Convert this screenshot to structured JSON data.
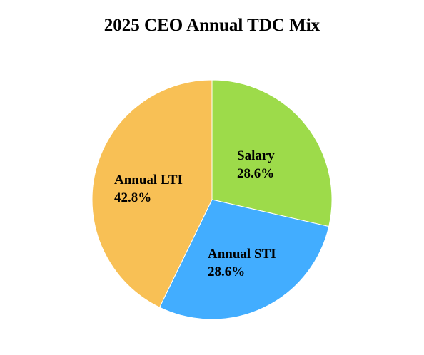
{
  "chart_data": {
    "type": "pie",
    "title": "2025 CEO Annual TDC Mix",
    "slices": [
      {
        "label": "Salary",
        "value": 28.6,
        "value_label": "28.6%",
        "color": "#9ddb4a"
      },
      {
        "label": "Annual STI",
        "value": 28.6,
        "value_label": "28.6%",
        "color": "#42adff"
      },
      {
        "label": "Annual LTI",
        "value": 42.8,
        "value_label": "42.8%",
        "color": "#f8c055"
      }
    ],
    "start_angle": "12 o'clock",
    "direction": "clockwise",
    "legend": "none"
  }
}
